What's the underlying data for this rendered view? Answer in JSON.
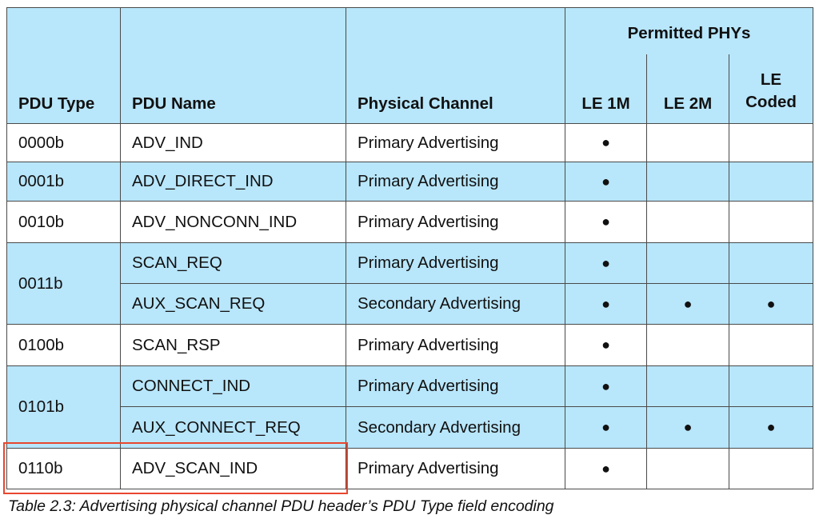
{
  "table": {
    "headers": {
      "pdu_type": "PDU Type",
      "pdu_name": "PDU Name",
      "physical_channel": "Physical Channel",
      "permitted_phys": "Permitted PHYs",
      "le_1m": "LE 1M",
      "le_2m": "LE 2M",
      "le_coded": "LE Coded"
    },
    "dot": "●",
    "rows": [
      {
        "type": "0000b",
        "name": "ADV_IND",
        "channel": "Primary Advertising",
        "le1m": "●",
        "le2m": "",
        "coded": ""
      },
      {
        "type": "0001b",
        "name": "ADV_DIRECT_IND",
        "channel": "Primary Advertising",
        "le1m": "●",
        "le2m": "",
        "coded": ""
      },
      {
        "type": "0010b",
        "name": "ADV_NONCONN_IND",
        "channel": "Primary Advertising",
        "le1m": "●",
        "le2m": "",
        "coded": ""
      },
      {
        "type": "0011b",
        "name": "SCAN_REQ",
        "channel": "Primary Advertising",
        "le1m": "●",
        "le2m": "",
        "coded": ""
      },
      {
        "type": "",
        "name": "AUX_SCAN_REQ",
        "channel": "Secondary Advertising",
        "le1m": "●",
        "le2m": "●",
        "coded": "●"
      },
      {
        "type": "0100b",
        "name": "SCAN_RSP",
        "channel": "Primary Advertising",
        "le1m": "●",
        "le2m": "",
        "coded": ""
      },
      {
        "type": "0101b",
        "name": "CONNECT_IND",
        "channel": "Primary Advertising",
        "le1m": "●",
        "le2m": "",
        "coded": ""
      },
      {
        "type": "",
        "name": "AUX_CONNECT_REQ",
        "channel": "Secondary Advertising",
        "le1m": "●",
        "le2m": "●",
        "coded": "●"
      },
      {
        "type": "0110b",
        "name": "ADV_SCAN_IND",
        "channel": "Primary Advertising",
        "le1m": "●",
        "le2m": "",
        "coded": ""
      }
    ]
  },
  "caption": "Table 2.3:  Advertising physical channel PDU header’s PDU Type field encoding",
  "colors": {
    "header_bg": "#b8e6fb",
    "highlight": "#e8472e"
  }
}
